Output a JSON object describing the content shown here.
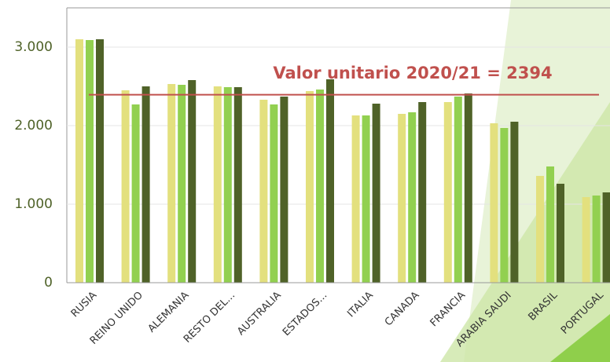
{
  "chart_data": {
    "type": "bar",
    "categories": [
      "RUSIA",
      "REINO UNIDO",
      "ALEMANIA",
      "RESTO DEL...",
      "AUSTRALIA",
      "ESTADOS...",
      "ITALIA",
      "CANADA",
      "FRANCIA",
      "ARABIA SAUDI",
      "BRASIL",
      "PORTUGAL"
    ],
    "series": [
      {
        "color": "#e3e07e",
        "values": [
          3100,
          2450,
          2530,
          2500,
          2330,
          2440,
          2130,
          2150,
          2300,
          2030,
          1360,
          1090
        ]
      },
      {
        "color": "#92d050",
        "values": [
          3090,
          2270,
          2520,
          2490,
          2270,
          2460,
          2130,
          2170,
          2370,
          1970,
          1480,
          1110
        ]
      },
      {
        "color": "#4f6228",
        "values": [
          3100,
          2500,
          2580,
          2490,
          2370,
          2590,
          2280,
          2300,
          2410,
          2050,
          1260,
          1150
        ]
      }
    ],
    "ylim": [
      0,
      3500
    ],
    "yticks": [
      0,
      {
        "value": 1000,
        "label": "1.000"
      },
      {
        "value": 2000,
        "label": "2.000"
      },
      {
        "value": 3000,
        "label": "3.000"
      }
    ],
    "reference_value": 2394,
    "reference_color": "#c0504d",
    "annotation": "Valor unitario 2020/21 = 2394"
  }
}
